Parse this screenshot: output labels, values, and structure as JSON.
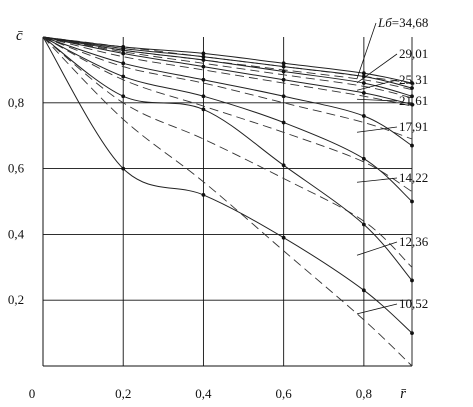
{
  "chart_data": {
    "type": "line",
    "ylabel": "c̄",
    "xlabel": "r̄",
    "origin_label": "0",
    "xlim": [
      0,
      0.92
    ],
    "ylim": [
      0,
      1.0
    ],
    "x_ticks": [
      0.2,
      0.4,
      0.6,
      0.8
    ],
    "x_tick_labels": [
      "0,2",
      "0,4",
      "0,6",
      "0,8"
    ],
    "y_ticks": [
      0.2,
      0.4,
      0.6,
      0.8
    ],
    "y_tick_labels": [
      "0,2",
      "0,4",
      "0,6",
      "0,8"
    ],
    "grid": true,
    "param_symbol": "Lб",
    "series": [
      {
        "name": "34,68",
        "label": "Lб=34,68",
        "x": [
          0,
          0.2,
          0.4,
          0.6,
          0.8,
          0.92
        ],
        "solid": [
          1.0,
          0.97,
          0.95,
          0.92,
          0.89,
          0.86
        ],
        "dashed": [
          1.0,
          0.97,
          0.94,
          0.91,
          0.88,
          0.86
        ]
      },
      {
        "name": "29,01",
        "label": "29,01",
        "x": [
          0,
          0.2,
          0.4,
          0.6,
          0.8,
          0.92
        ],
        "solid": [
          1.0,
          0.965,
          0.94,
          0.91,
          0.88,
          0.845
        ],
        "dashed": [
          1.0,
          0.96,
          0.93,
          0.9,
          0.87,
          0.84
        ]
      },
      {
        "name": "25,31",
        "label": "25,31",
        "x": [
          0,
          0.2,
          0.4,
          0.6,
          0.8,
          0.92
        ],
        "solid": [
          1.0,
          0.96,
          0.93,
          0.895,
          0.86,
          0.82
        ],
        "dashed": [
          1.0,
          0.955,
          0.92,
          0.885,
          0.85,
          0.815
        ]
      },
      {
        "name": "21,61",
        "label": "21,61",
        "x": [
          0,
          0.2,
          0.4,
          0.6,
          0.8,
          0.92
        ],
        "solid": [
          1.0,
          0.95,
          0.91,
          0.87,
          0.83,
          0.795
        ],
        "dashed": [
          1.0,
          0.94,
          0.9,
          0.86,
          0.82,
          0.79
        ]
      },
      {
        "name": "17,91",
        "label": "17,91",
        "x": [
          0,
          0.2,
          0.4,
          0.6,
          0.8,
          0.92
        ],
        "solid": [
          1.0,
          0.92,
          0.87,
          0.82,
          0.76,
          0.67
        ],
        "dashed": [
          1.0,
          0.91,
          0.86,
          0.8,
          0.74,
          0.69
        ]
      },
      {
        "name": "14,22",
        "label": "14,22",
        "x": [
          0,
          0.2,
          0.4,
          0.6,
          0.8,
          0.92
        ],
        "solid": [
          1.0,
          0.88,
          0.82,
          0.74,
          0.63,
          0.5
        ],
        "dashed": [
          1.0,
          0.87,
          0.79,
          0.71,
          0.62,
          0.53
        ]
      },
      {
        "name": "12,36",
        "label": "12,36",
        "x": [
          0,
          0.2,
          0.4,
          0.6,
          0.8,
          0.92
        ],
        "solid": [
          1.0,
          0.82,
          0.78,
          0.61,
          0.43,
          0.26
        ],
        "dashed": [
          1.0,
          0.8,
          0.69,
          0.57,
          0.44,
          0.3
        ]
      },
      {
        "name": "10,52",
        "label": "10,52",
        "x": [
          0,
          0.2,
          0.4,
          0.6,
          0.8,
          0.92
        ],
        "solid": [
          1.0,
          0.6,
          0.52,
          0.39,
          0.23,
          0.1
        ],
        "dashed": [
          1.0,
          0.75,
          0.56,
          0.35,
          0.14,
          0.0
        ]
      }
    ]
  }
}
